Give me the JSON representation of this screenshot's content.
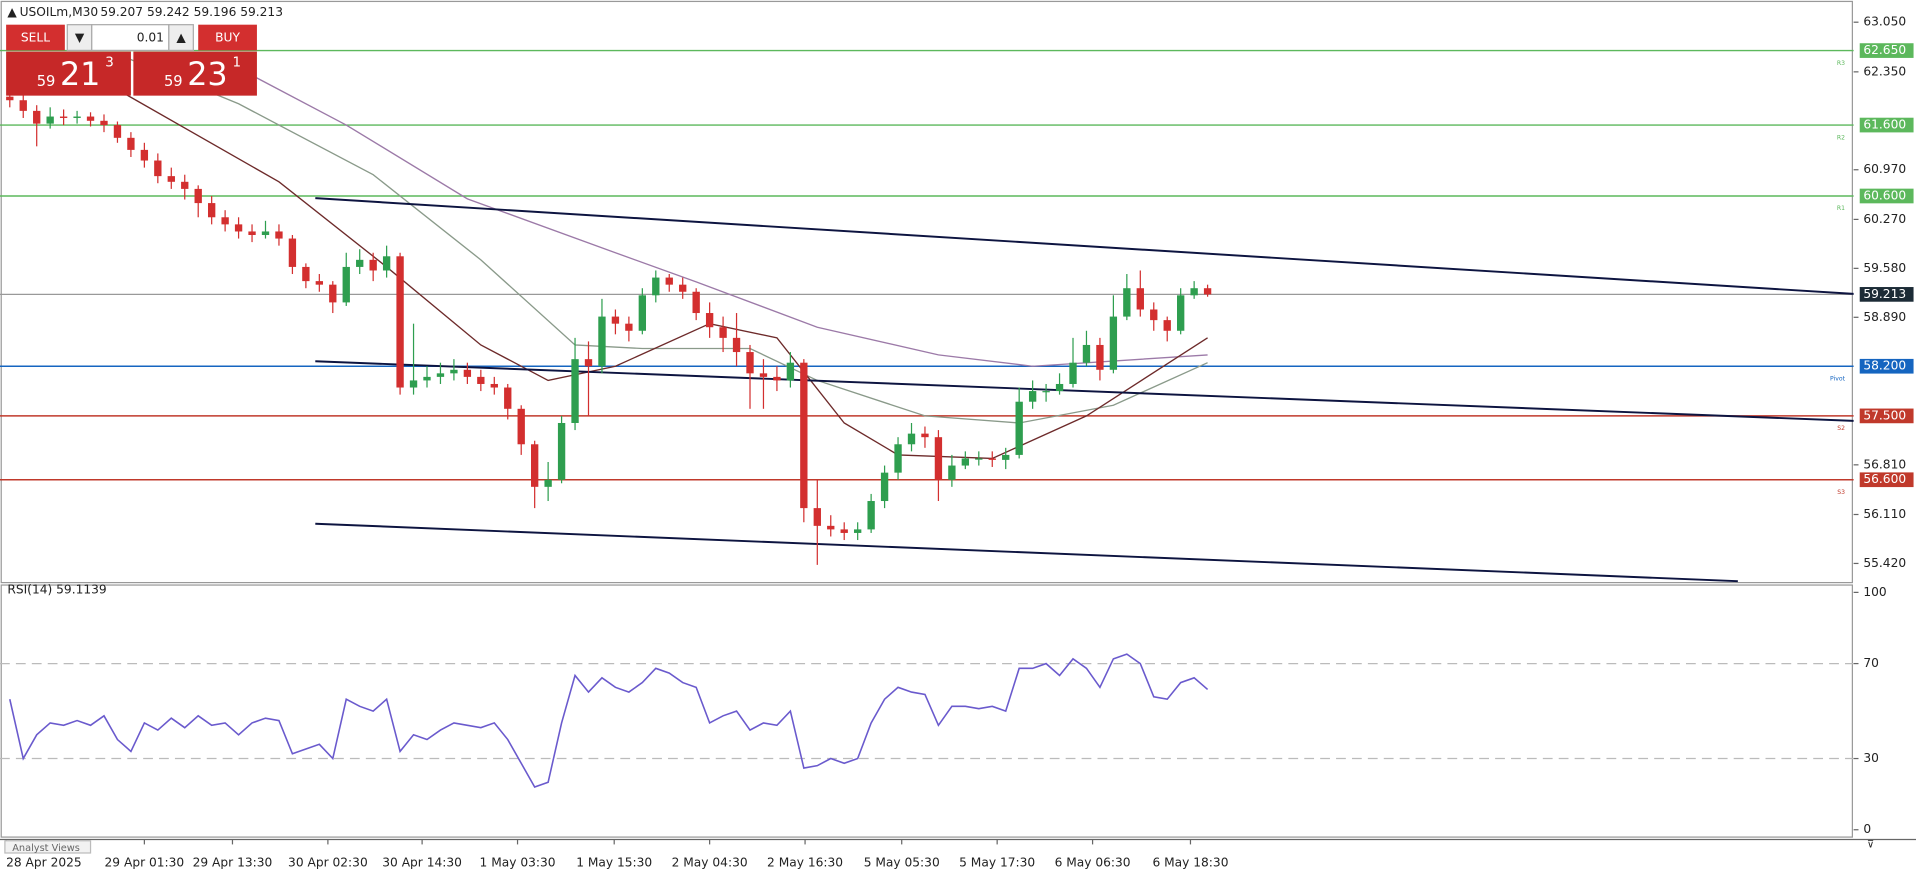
{
  "symbol_bar": {
    "symbol": "USOILm,M30",
    "quote": "59.207 59.242 59.196 59.213"
  },
  "trade_panel": {
    "sell": "SELL",
    "buy": "BUY",
    "lot": "0.01",
    "sell_price": {
      "big": "59",
      "main": "21",
      "small": "3"
    },
    "buy_price": {
      "big": "59",
      "main": "23",
      "small": "1"
    }
  },
  "chart": {
    "ylim": [
      55.15,
      63.36
    ],
    "yticks": [
      {
        "value": 63.05,
        "label": "63.050"
      },
      {
        "value": 62.35,
        "label": "62.350"
      },
      {
        "value": 60.97,
        "label": "60.970"
      },
      {
        "value": 60.27,
        "label": "60.270"
      },
      {
        "value": 59.58,
        "label": "59.580"
      },
      {
        "value": 58.89,
        "label": "58.890"
      },
      {
        "value": 56.81,
        "label": "56.810"
      },
      {
        "value": 56.11,
        "label": "56.110"
      },
      {
        "value": 55.42,
        "label": "55.420"
      }
    ],
    "up_color": "#2e9e4f",
    "down_color": "#d32f2f",
    "open_first": 62.0,
    "close": [
      61.95,
      61.8,
      61.62,
      61.72,
      61.7,
      61.72,
      61.66,
      61.6,
      61.42,
      61.25,
      61.1,
      60.88,
      60.8,
      60.7,
      60.5,
      60.3,
      60.2,
      60.1,
      60.05,
      60.1,
      60.0,
      59.6,
      59.4,
      59.35,
      59.1,
      59.6,
      59.7,
      59.55,
      59.75,
      57.9,
      58.0,
      58.05,
      58.1,
      58.15,
      58.05,
      57.95,
      57.9,
      57.6,
      57.1,
      56.5,
      56.6,
      57.4,
      58.3,
      58.2,
      58.9,
      58.8,
      58.7,
      59.2,
      59.45,
      59.35,
      59.25,
      58.95,
      58.75,
      58.6,
      58.4,
      58.1,
      58.05,
      58.0,
      58.25,
      56.2,
      55.95,
      55.9,
      55.85,
      55.9,
      56.3,
      56.7,
      57.1,
      57.25,
      57.2,
      56.6,
      56.8,
      56.9,
      56.9,
      56.88,
      56.95,
      57.7,
      57.85,
      57.85,
      57.95,
      58.25,
      58.5,
      58.15,
      58.9,
      59.3,
      59.0,
      58.85,
      58.7,
      59.2,
      59.3,
      59.213
    ],
    "high": [
      62.1,
      62.02,
      61.88,
      61.85,
      61.82,
      61.8,
      61.78,
      61.75,
      61.65,
      61.5,
      61.35,
      61.2,
      61.0,
      60.9,
      60.75,
      60.6,
      60.4,
      60.3,
      60.2,
      60.25,
      60.2,
      60.05,
      59.65,
      59.5,
      59.4,
      59.8,
      59.85,
      59.8,
      59.9,
      59.8,
      58.8,
      58.2,
      58.25,
      58.3,
      58.25,
      58.15,
      58.05,
      57.95,
      57.65,
      57.15,
      56.85,
      57.5,
      58.6,
      58.55,
      59.15,
      59.0,
      58.9,
      59.3,
      59.55,
      59.5,
      59.45,
      59.3,
      59.1,
      58.9,
      58.95,
      58.5,
      58.3,
      58.2,
      58.4,
      58.3,
      56.6,
      56.1,
      56.0,
      56.0,
      56.4,
      56.8,
      57.2,
      57.4,
      57.35,
      57.3,
      56.95,
      57.0,
      57.0,
      57.0,
      57.05,
      57.9,
      58.0,
      57.95,
      58.1,
      58.6,
      58.7,
      58.6,
      59.2,
      59.5,
      59.55,
      59.1,
      58.9,
      59.3,
      59.4,
      59.35
    ],
    "low": [
      61.85,
      61.7,
      61.3,
      61.55,
      61.6,
      61.62,
      61.58,
      61.5,
      61.35,
      61.15,
      61.0,
      60.78,
      60.7,
      60.55,
      60.3,
      60.2,
      60.1,
      60.0,
      59.95,
      60.0,
      59.9,
      59.5,
      59.3,
      59.25,
      58.95,
      59.05,
      59.5,
      59.4,
      59.45,
      57.8,
      57.8,
      57.9,
      57.95,
      58.0,
      57.95,
      57.85,
      57.8,
      57.45,
      56.95,
      56.2,
      56.3,
      56.55,
      57.3,
      57.5,
      58.1,
      58.65,
      58.55,
      58.65,
      59.1,
      59.25,
      59.15,
      58.85,
      58.6,
      58.4,
      58.2,
      57.6,
      57.6,
      57.85,
      57.9,
      56.0,
      55.4,
      55.8,
      55.75,
      55.75,
      55.85,
      56.2,
      56.6,
      57.0,
      57.05,
      56.3,
      56.5,
      56.75,
      56.8,
      56.78,
      56.75,
      56.9,
      57.6,
      57.7,
      57.8,
      57.9,
      58.2,
      58.0,
      58.1,
      58.85,
      58.9,
      58.7,
      58.55,
      58.65,
      59.15,
      59.18
    ],
    "levels": [
      {
        "value": 62.65,
        "label": "62.650",
        "tag": "R3",
        "color": "#5cb85c"
      },
      {
        "value": 61.6,
        "label": "61.600",
        "tag": "R2",
        "color": "#5cb85c"
      },
      {
        "value": 60.6,
        "label": "60.600",
        "tag": "R1",
        "color": "#5cb85c"
      },
      {
        "value": 58.2,
        "label": "58.200",
        "tag": "Pivot",
        "color": "#1565c0"
      },
      {
        "value": 57.5,
        "label": "57.500",
        "tag": "S2",
        "color": "#c0392b"
      },
      {
        "value": 56.6,
        "label": "56.600",
        "tag": "S3",
        "color": "#c0392b"
      }
    ],
    "current": {
      "value": 59.213,
      "label": "59.213",
      "color": "#1c2b36"
    },
    "moving_averages": [
      {
        "color": "#9c7aa8",
        "x": [
          17,
          25,
          34,
          45,
          51,
          60,
          69,
          76,
          89
        ],
        "values": [
          62.4,
          61.6,
          60.56,
          59.8,
          59.39,
          58.75,
          58.36,
          58.2,
          58.36
        ]
      },
      {
        "color": "#8a9a8a",
        "x": [
          8,
          17,
          27,
          35,
          42,
          47,
          55,
          60,
          68,
          75,
          82,
          89
        ],
        "values": [
          62.6,
          61.9,
          60.9,
          59.7,
          58.5,
          58.45,
          58.45,
          58.0,
          57.5,
          57.4,
          57.65,
          58.25
        ]
      },
      {
        "color": "#6d2a2a",
        "x": [
          8,
          20,
          28,
          35,
          40,
          45,
          52,
          57,
          62,
          66,
          73,
          80,
          89
        ],
        "values": [
          62.1,
          60.8,
          59.6,
          58.5,
          58.0,
          58.2,
          58.8,
          58.6,
          57.4,
          56.95,
          56.9,
          57.5,
          58.6
        ]
      }
    ],
    "trendlines": [
      {
        "x": [
          22.7,
          137
        ],
        "values": [
          60.57,
          59.22
        ]
      },
      {
        "x": [
          22.7,
          137
        ],
        "values": [
          58.27,
          57.43
        ]
      },
      {
        "x": [
          22.7,
          128.4
        ],
        "values": [
          55.98,
          55.17
        ]
      }
    ],
    "time_labels": [
      "28 Apr 2025",
      "29 Apr 01:30",
      "29 Apr 13:30",
      "30 Apr 02:30",
      "30 Apr 14:30",
      "1 May 03:30",
      "1 May 15:30",
      "2 May 04:30",
      "2 May 16:30",
      "5 May 05:30",
      "5 May 17:30",
      "6 May 06:30",
      "6 May 18:30"
    ]
  },
  "rsi": {
    "title": "RSI(14) 59.1139",
    "color": "#6a5acd",
    "ylim": [
      0,
      100
    ],
    "yticks": [
      100,
      70,
      30,
      0
    ],
    "levels": [
      70,
      30
    ],
    "values": [
      55,
      30,
      40,
      45,
      44,
      46,
      44,
      48,
      38,
      33,
      45,
      42,
      47,
      43,
      48,
      44,
      45,
      40,
      45,
      47,
      46,
      32,
      34,
      36,
      30,
      55,
      52,
      50,
      55,
      33,
      40,
      38,
      42,
      45,
      44,
      43,
      45,
      38,
      28,
      18,
      20,
      45,
      65,
      58,
      64,
      60,
      58,
      62,
      68,
      66,
      62,
      60,
      45,
      48,
      50,
      42,
      45,
      44,
      50,
      26,
      27,
      30,
      28,
      30,
      45,
      55,
      60,
      58,
      57,
      44,
      52,
      52,
      51,
      52,
      50,
      68,
      68,
      70,
      65,
      72,
      68,
      60,
      72,
      74,
      70,
      56,
      55,
      62,
      64,
      59.1139
    ]
  },
  "tabs": {
    "analyst_views": "Analyst Views"
  }
}
